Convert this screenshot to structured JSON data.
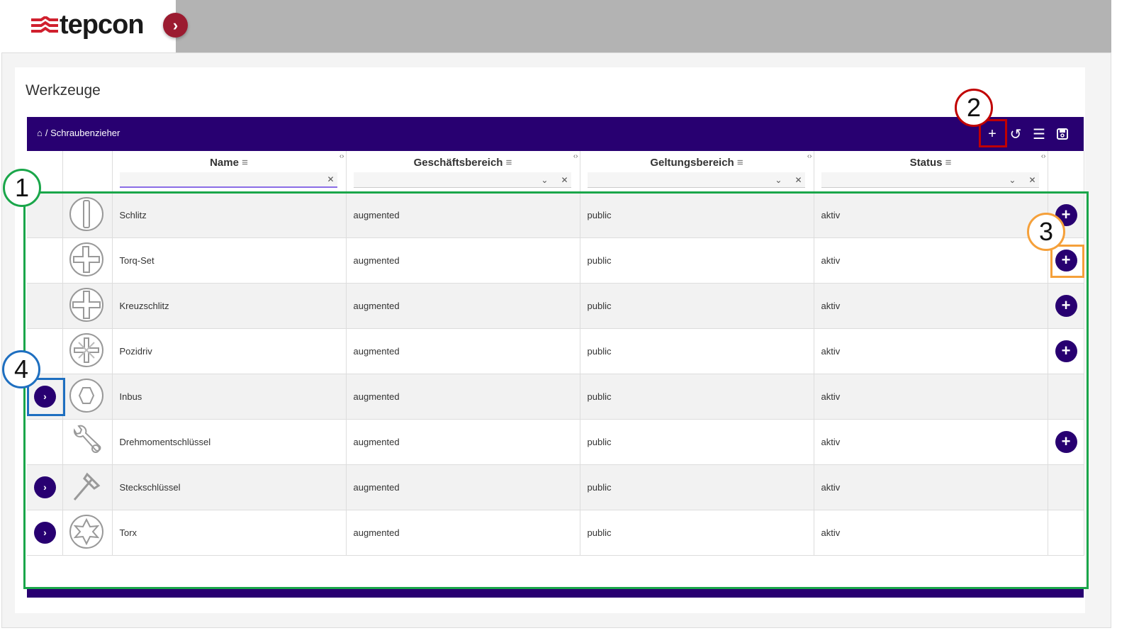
{
  "brand": {
    "logo_text": "tepcon",
    "logo_color": "#d0202e",
    "accent": "#280071"
  },
  "page_title": "Werkzeuge",
  "breadcrumb": {
    "home_icon": "home-icon",
    "path": "/ Schraubenzieher"
  },
  "toolbar": {
    "add": "+",
    "reset_icon": "undo-icon",
    "menu_icon": "menu-icon",
    "save_icon": "save-icon"
  },
  "columns": [
    {
      "label": "Name",
      "filter": "text"
    },
    {
      "label": "Geschäftsbereich",
      "filter": "select"
    },
    {
      "label": "Geltungsbereich",
      "filter": "select"
    },
    {
      "label": "Status",
      "filter": "select"
    }
  ],
  "rows": [
    {
      "icon": "slot",
      "name": "Schlitz",
      "bereich": "augmented",
      "geltung": "public",
      "status": "aktiv",
      "expand": false,
      "add": true
    },
    {
      "icon": "torqset",
      "name": "Torq-Set",
      "bereich": "augmented",
      "geltung": "public",
      "status": "aktiv",
      "expand": false,
      "add": true
    },
    {
      "icon": "phillips",
      "name": "Kreuzschlitz",
      "bereich": "augmented",
      "geltung": "public",
      "status": "aktiv",
      "expand": false,
      "add": true
    },
    {
      "icon": "pozidriv",
      "name": "Pozidriv",
      "bereich": "augmented",
      "geltung": "public",
      "status": "aktiv",
      "expand": false,
      "add": true
    },
    {
      "icon": "hex",
      "name": "Inbus",
      "bereich": "augmented",
      "geltung": "public",
      "status": "aktiv",
      "expand": true,
      "add": false
    },
    {
      "icon": "wrench",
      "name": "Drehmomentschlüssel",
      "bereich": "augmented",
      "geltung": "public",
      "status": "aktiv",
      "expand": false,
      "add": true
    },
    {
      "icon": "socket",
      "name": "Steckschlüssel",
      "bereich": "augmented",
      "geltung": "public",
      "status": "aktiv",
      "expand": true,
      "add": false
    },
    {
      "icon": "torx",
      "name": "Torx",
      "bereich": "augmented",
      "geltung": "public",
      "status": "aktiv",
      "expand": true,
      "add": false
    }
  ],
  "annotations": [
    {
      "label": "1",
      "color": "#1aa64a"
    },
    {
      "label": "2",
      "color": "#c00000"
    },
    {
      "label": "3",
      "color": "#f5a03a"
    },
    {
      "label": "4",
      "color": "#1e6fc0"
    }
  ]
}
